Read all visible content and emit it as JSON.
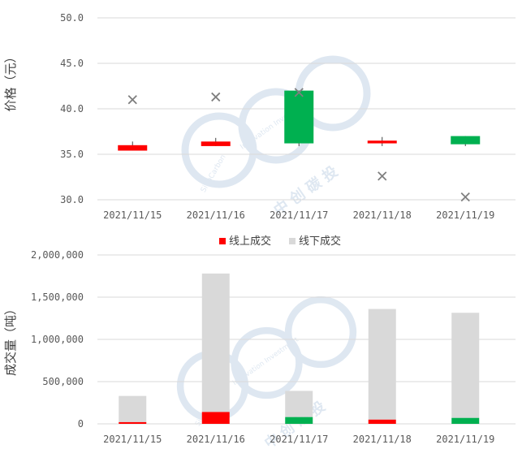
{
  "chart_data": [
    {
      "type": "candlestick",
      "ylabel": "价格（元）",
      "ylim": [
        30,
        50
      ],
      "yticks": [
        "50.0",
        "45.0",
        "40.0",
        "35.0",
        "30.0"
      ],
      "ytick_values": [
        50,
        45,
        40,
        35,
        30
      ],
      "categories": [
        "2021/11/15",
        "2021/11/16",
        "2021/11/17",
        "2021/11/18",
        "2021/11/19"
      ],
      "candles": [
        {
          "open": 36.0,
          "close": 35.4,
          "high": 36.4,
          "low": 35.4,
          "color": "#ff0000"
        },
        {
          "open": 36.4,
          "close": 35.9,
          "high": 36.8,
          "low": 35.9,
          "color": "#ff0000"
        },
        {
          "open": 36.2,
          "close": 42.0,
          "high": 42.0,
          "low": 35.9,
          "color": "#00b050"
        },
        {
          "open": 36.5,
          "close": 36.2,
          "high": 36.9,
          "low": 35.9,
          "color": "#ff0000"
        },
        {
          "open": 36.1,
          "close": 37.0,
          "high": 37.0,
          "low": 35.9,
          "color": "#00b050"
        }
      ],
      "offline_price_markers": [
        41.0,
        41.3,
        41.8,
        32.6,
        30.3
      ],
      "marker_color": "#7f7f7f"
    },
    {
      "type": "bar",
      "stacked": true,
      "ylabel": "成交量（吨）",
      "ylim": [
        0,
        2000000
      ],
      "yticks": [
        "2,000,000",
        "1,500,000",
        "1,000,000",
        "500,000",
        "0"
      ],
      "ytick_values": [
        2000000,
        1500000,
        1000000,
        500000,
        0
      ],
      "categories": [
        "2021/11/15",
        "2021/11/16",
        "2021/11/17",
        "2021/11/18",
        "2021/11/19"
      ],
      "legend_position": "top",
      "series": [
        {
          "name": "线上成交",
          "values": [
            20000,
            140000,
            80000,
            50000,
            70000
          ],
          "color": "#ff0000",
          "point_colors": [
            "#ff0000",
            "#ff0000",
            "#00b050",
            "#ff0000",
            "#00b050"
          ]
        },
        {
          "name": "线下成交",
          "values": [
            310000,
            1640000,
            310000,
            1310000,
            1245000
          ],
          "color": "#d9d9d9"
        }
      ]
    }
  ],
  "watermark": {
    "cn": "中 创 碳 投",
    "en_1": "Innovation Investment",
    "en_2": "SinoCarbon",
    "color": "#dbe5f0"
  }
}
